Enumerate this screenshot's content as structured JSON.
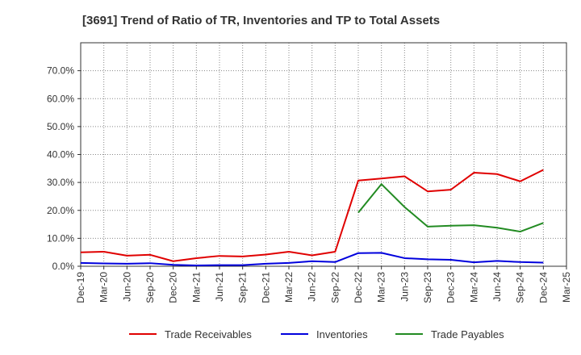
{
  "chart_data": {
    "type": "line",
    "title": "[3691]  Trend of Ratio of TR, Inventories and TP to Total Assets",
    "xlabel": "",
    "ylabel": "",
    "categories": [
      "Dec-19",
      "Mar-20",
      "Jun-20",
      "Sep-20",
      "Dec-20",
      "Mar-21",
      "Jun-21",
      "Sep-21",
      "Dec-21",
      "Mar-22",
      "Jun-22",
      "Sep-22",
      "Dec-22",
      "Mar-23",
      "Jun-23",
      "Sep-23",
      "Dec-23",
      "Mar-24",
      "Jun-24",
      "Sep-24",
      "Dec-24",
      "Mar-25"
    ],
    "y_ticks": [
      "0.0%",
      "10.0%",
      "20.0%",
      "30.0%",
      "40.0%",
      "50.0%",
      "60.0%",
      "70.0%"
    ],
    "ylim": [
      0,
      80
    ],
    "grid": true,
    "legend_position": "bottom",
    "series": [
      {
        "name": "Trade Receivables",
        "color": "#e00000",
        "values": [
          5.0,
          5.2,
          3.8,
          4.1,
          1.8,
          2.9,
          3.7,
          3.5,
          4.2,
          5.2,
          3.9,
          5.2,
          30.7,
          31.4,
          32.2,
          26.8,
          27.4,
          33.5,
          33.0,
          30.4,
          34.5,
          null
        ]
      },
      {
        "name": "Inventories",
        "color": "#0000dd",
        "values": [
          1.2,
          1.0,
          0.9,
          1.1,
          0.5,
          0.3,
          0.4,
          0.4,
          0.9,
          1.2,
          1.8,
          1.5,
          4.7,
          4.8,
          2.9,
          2.5,
          2.3,
          1.4,
          1.9,
          1.5,
          1.3,
          null
        ]
      },
      {
        "name": "Trade Payables",
        "color": "#228b22",
        "values": [
          null,
          null,
          null,
          null,
          null,
          null,
          null,
          null,
          null,
          null,
          null,
          null,
          19.2,
          29.4,
          21.2,
          14.2,
          14.5,
          14.7,
          13.8,
          12.4,
          15.5,
          null
        ]
      }
    ]
  }
}
